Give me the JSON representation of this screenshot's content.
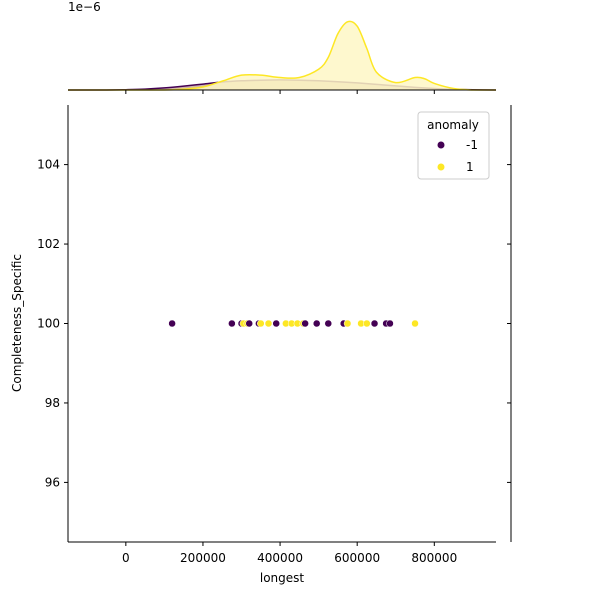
{
  "chart_data": {
    "type": "scatter",
    "subtype": "jointplot",
    "xlabel": "longest",
    "ylabel": "Completeness_Specific",
    "xlim": [
      -150000,
      960000
    ],
    "ylim": [
      94.5,
      105.5
    ],
    "xticks": [
      0,
      200000,
      400000,
      600000,
      800000
    ],
    "xtick_labels": [
      "0",
      "200000",
      "400000",
      "600000",
      "800000"
    ],
    "yticks": [
      96,
      98,
      100,
      102,
      104
    ],
    "ytick_labels": [
      "96",
      "98",
      "100",
      "102",
      "104"
    ],
    "grid": false,
    "legend": {
      "title": "anomaly",
      "placement": "top-right",
      "entries": [
        {
          "label": "-1",
          "color": "#440154"
        },
        {
          "label": "1",
          "color": "#fde725"
        }
      ]
    },
    "marginal_x": {
      "type": "kde",
      "offset_label": "1e−6",
      "ylim": [
        0,
        2.9
      ],
      "series": [
        {
          "anomaly": "-1",
          "color": "#440154",
          "fill": "#c8a99b",
          "x": [
            -150000,
            -50000,
            0,
            50000,
            100000,
            150000,
            200000,
            250000,
            300000,
            350000,
            400000,
            450000,
            500000,
            550000,
            600000,
            650000,
            700000,
            750000,
            800000,
            850000,
            900000,
            960000
          ],
          "y": [
            0,
            0.0,
            0.01,
            0.03,
            0.07,
            0.13,
            0.2,
            0.27,
            0.31,
            0.33,
            0.34,
            0.33,
            0.31,
            0.28,
            0.24,
            0.19,
            0.14,
            0.09,
            0.05,
            0.02,
            0.01,
            0
          ]
        },
        {
          "anomaly": "1",
          "color": "#fde725",
          "fill": "#fef7c5",
          "x": [
            -150000,
            0,
            100000,
            150000,
            200000,
            250000,
            300000,
            350000,
            400000,
            450000,
            500000,
            525000,
            550000,
            575000,
            600000,
            625000,
            650000,
            700000,
            750000,
            775000,
            800000,
            850000,
            900000,
            960000
          ],
          "y": [
            0,
            0.0,
            0.0,
            0.03,
            0.1,
            0.3,
            0.5,
            0.5,
            0.42,
            0.42,
            0.7,
            1.1,
            1.9,
            2.3,
            2.15,
            1.4,
            0.6,
            0.25,
            0.42,
            0.38,
            0.22,
            0.05,
            0.0,
            0
          ]
        }
      ]
    },
    "points": [
      {
        "x": 120000,
        "y": 100,
        "anomaly": "-1"
      },
      {
        "x": 275000,
        "y": 100,
        "anomaly": "-1"
      },
      {
        "x": 300000,
        "y": 100,
        "anomaly": "-1"
      },
      {
        "x": 305000,
        "y": 100,
        "anomaly": "1"
      },
      {
        "x": 315000,
        "y": 100,
        "anomaly": "1"
      },
      {
        "x": 320000,
        "y": 100,
        "anomaly": "-1"
      },
      {
        "x": 345000,
        "y": 100,
        "anomaly": "-1"
      },
      {
        "x": 350000,
        "y": 100,
        "anomaly": "1"
      },
      {
        "x": 370000,
        "y": 100,
        "anomaly": "1"
      },
      {
        "x": 390000,
        "y": 100,
        "anomaly": "-1"
      },
      {
        "x": 415000,
        "y": 100,
        "anomaly": "1"
      },
      {
        "x": 430000,
        "y": 100,
        "anomaly": "1"
      },
      {
        "x": 445000,
        "y": 100,
        "anomaly": "1"
      },
      {
        "x": 460000,
        "y": 100,
        "anomaly": "1"
      },
      {
        "x": 465000,
        "y": 100,
        "anomaly": "-1"
      },
      {
        "x": 495000,
        "y": 100,
        "anomaly": "-1"
      },
      {
        "x": 525000,
        "y": 100,
        "anomaly": "-1"
      },
      {
        "x": 565000,
        "y": 100,
        "anomaly": "-1"
      },
      {
        "x": 575000,
        "y": 100,
        "anomaly": "1"
      },
      {
        "x": 610000,
        "y": 100,
        "anomaly": "1"
      },
      {
        "x": 625000,
        "y": 100,
        "anomaly": "1"
      },
      {
        "x": 645000,
        "y": 100,
        "anomaly": "-1"
      },
      {
        "x": 675000,
        "y": 100,
        "anomaly": "-1"
      },
      {
        "x": 685000,
        "y": 100,
        "anomaly": "-1"
      },
      {
        "x": 750000,
        "y": 100,
        "anomaly": "1"
      }
    ]
  }
}
